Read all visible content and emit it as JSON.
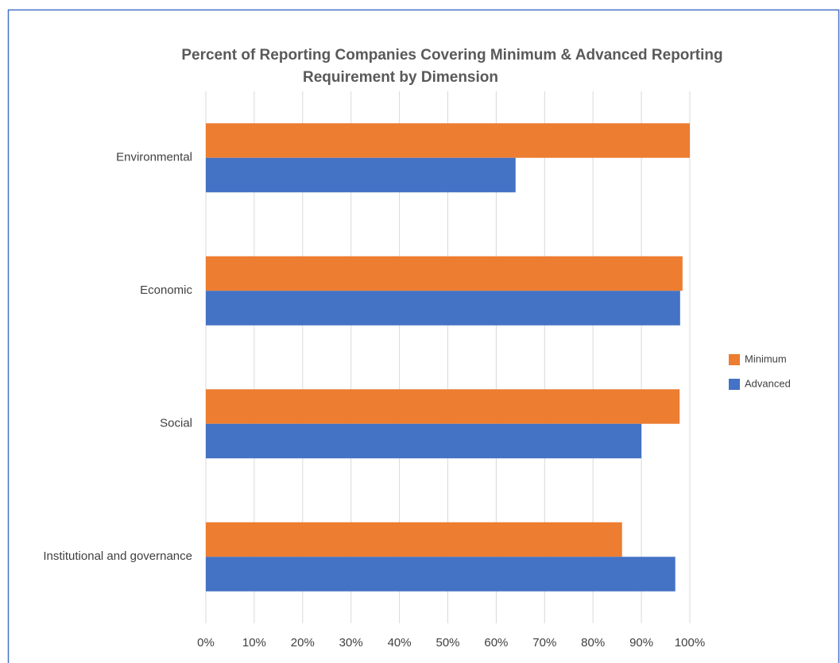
{
  "chart_data": {
    "type": "bar",
    "orientation": "horizontal",
    "title": [
      "Percent of Reporting Companies Covering Minimum & Advanced Reporting",
      "Requirement by Dimension"
    ],
    "categories": [
      "Environmental",
      "Economic",
      "Social",
      "Institutional and governance"
    ],
    "series": [
      {
        "name": "Minimum",
        "color": "#ed7d31",
        "values": [
          100,
          98.5,
          97.9,
          86
        ]
      },
      {
        "name": "Advanced",
        "color": "#4472c4",
        "values": [
          64,
          98,
          90,
          97
        ]
      }
    ],
    "xlim": [
      0,
      100
    ],
    "xticks": [
      {
        "value": 0,
        "label": "0%"
      },
      {
        "value": 10,
        "label": "10%"
      },
      {
        "value": 20,
        "label": "20%"
      },
      {
        "value": 30,
        "label": "30%"
      },
      {
        "value": 40,
        "label": "40%"
      },
      {
        "value": 50,
        "label": "50%"
      },
      {
        "value": 60,
        "label": "60%"
      },
      {
        "value": 70,
        "label": "70%"
      },
      {
        "value": 80,
        "label": "80%"
      },
      {
        "value": 90,
        "label": "90%"
      },
      {
        "value": 100,
        "label": "100%"
      }
    ],
    "grid": true,
    "legend": "right"
  }
}
